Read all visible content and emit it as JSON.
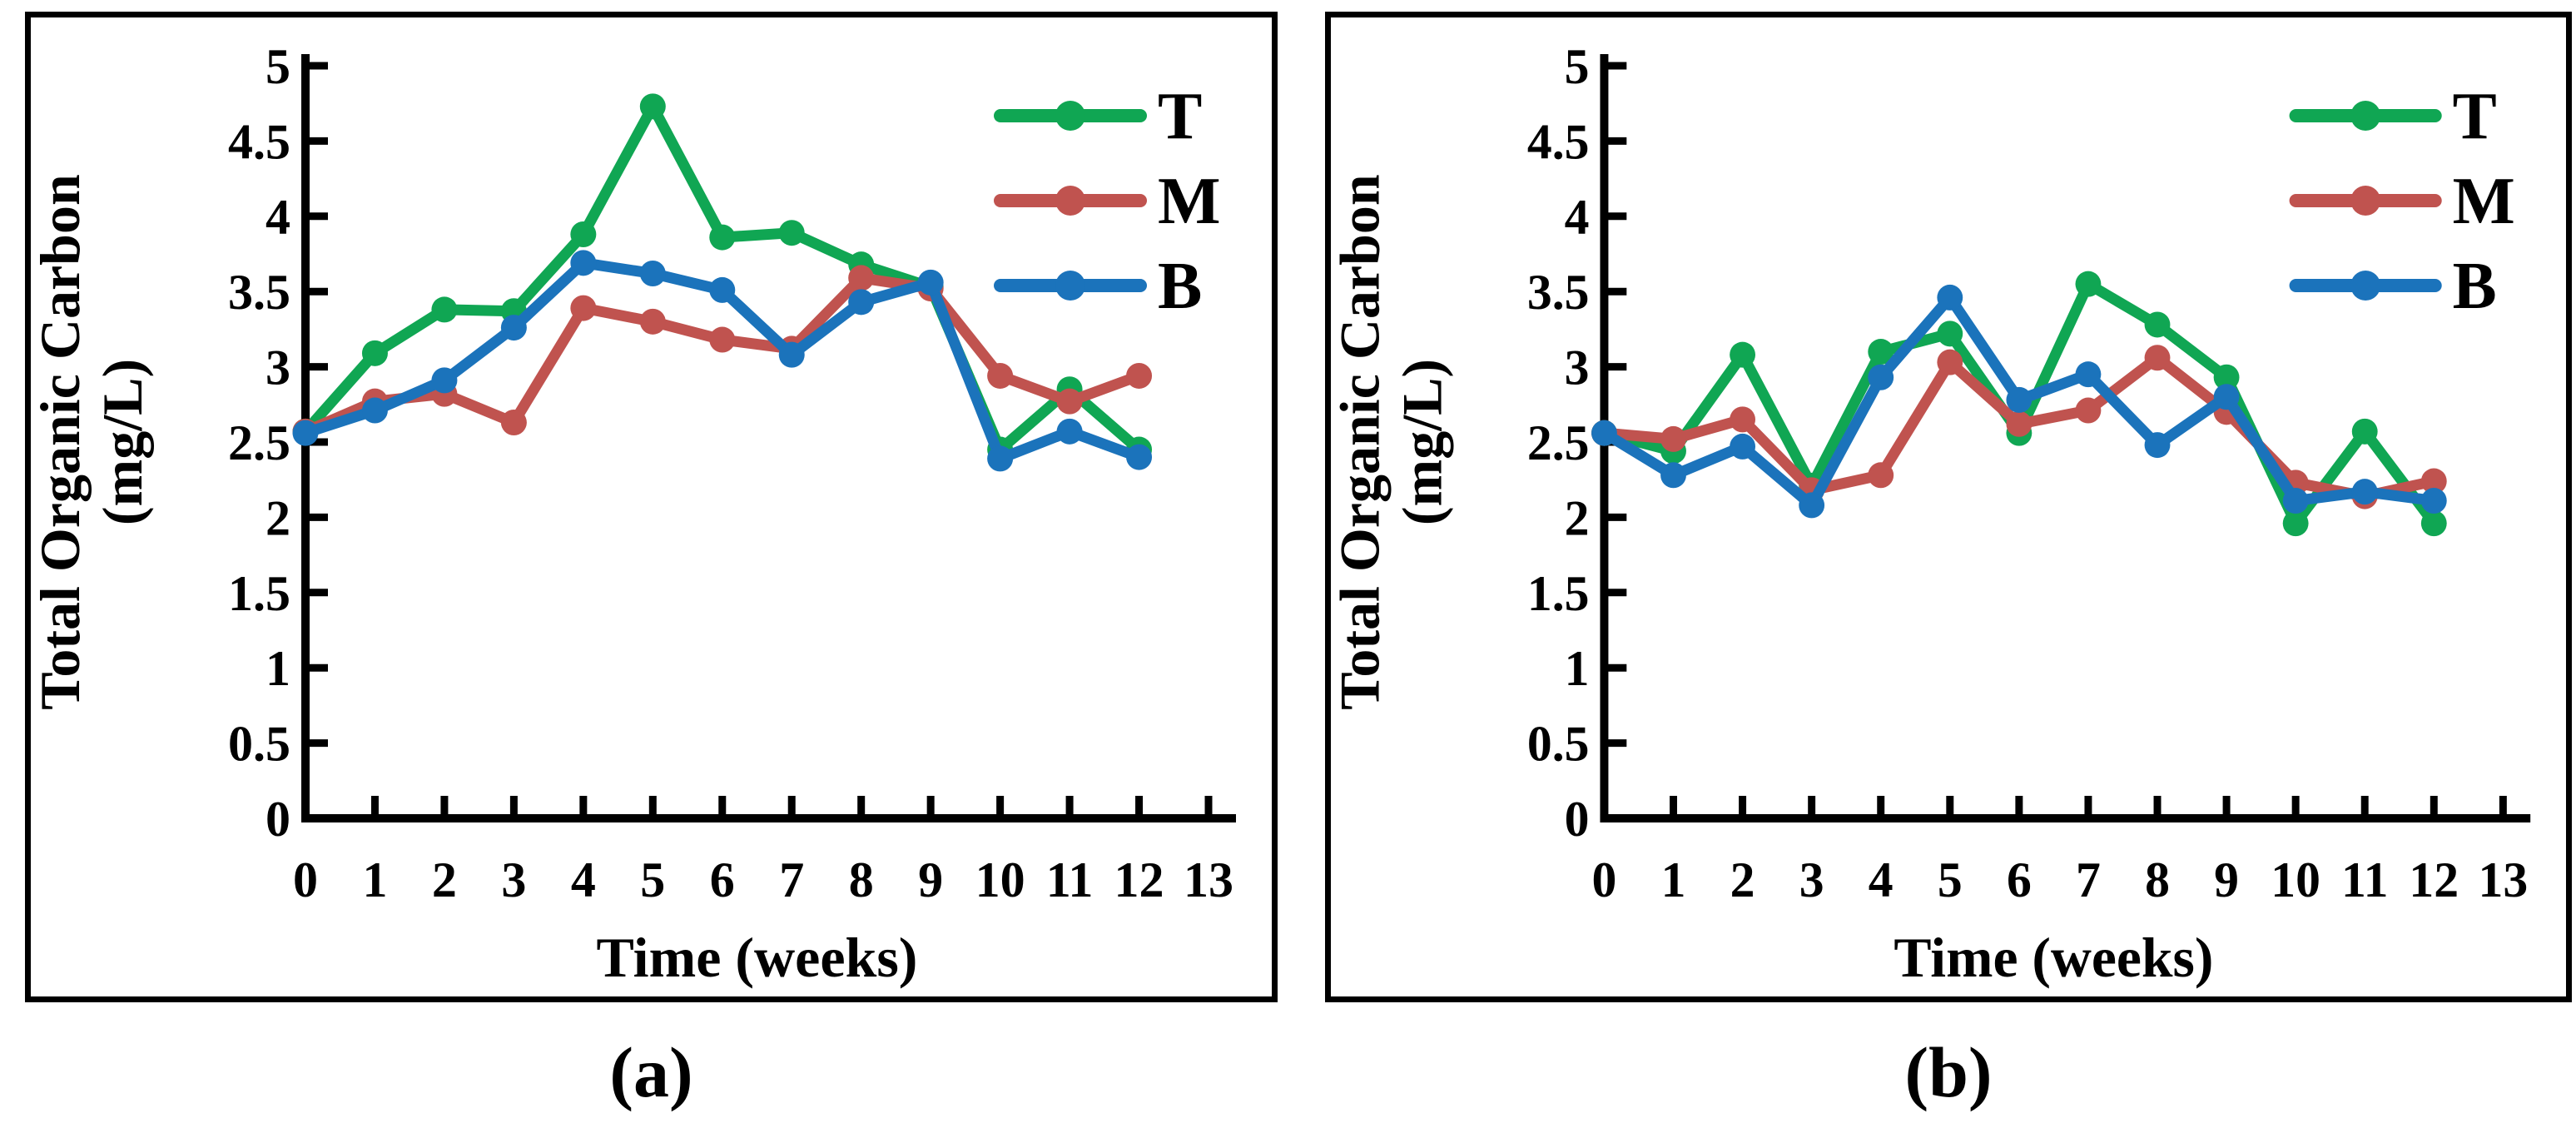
{
  "figure": {
    "background": "#ffffff",
    "axis_color": "#000000",
    "y_axis_title_line1": "Total Organic Carbon",
    "y_axis_title_line2": "(mg/L)",
    "x_axis_title": "Time (weeks)",
    "y_ticks": [
      0,
      0.5,
      1,
      1.5,
      2,
      2.5,
      3,
      3.5,
      4,
      4.5,
      5
    ],
    "x_ticks": [
      0,
      1,
      2,
      3,
      4,
      5,
      6,
      7,
      8,
      9,
      10,
      11,
      12,
      13
    ],
    "legend_entries": [
      "T",
      "M",
      "B"
    ],
    "series_colors": {
      "T": "#10a653",
      "M": "#c0534f",
      "B": "#1b73bb"
    }
  },
  "chart_data": [
    {
      "type": "line",
      "panel": "a",
      "caption": "(a)",
      "xlabel": "Time (weeks)",
      "ylabel": "Total Organic Carbon (mg/L)",
      "xlim": [
        0,
        13
      ],
      "ylim": [
        0,
        5
      ],
      "grid": false,
      "legend_position": "top-right-inside",
      "x": [
        0,
        1,
        2,
        3,
        4,
        5,
        6,
        7,
        8,
        9,
        10,
        11,
        12
      ],
      "series": [
        {
          "name": "T",
          "color": "#10a653",
          "values": [
            2.57,
            3.09,
            3.38,
            3.37,
            3.88,
            4.73,
            3.86,
            3.89,
            3.68,
            3.53,
            2.45,
            2.85,
            2.45
          ]
        },
        {
          "name": "M",
          "color": "#c0534f",
          "values": [
            2.57,
            2.77,
            2.82,
            2.63,
            3.39,
            3.3,
            3.18,
            3.12,
            3.59,
            3.52,
            2.94,
            2.77,
            2.94
          ]
        },
        {
          "name": "B",
          "color": "#1b73bb",
          "values": [
            2.56,
            2.71,
            2.91,
            3.26,
            3.69,
            3.62,
            3.51,
            3.08,
            3.43,
            3.56,
            2.39,
            2.57,
            2.4
          ]
        }
      ]
    },
    {
      "type": "line",
      "panel": "b",
      "caption": "(b)",
      "xlabel": "Time (weeks)",
      "ylabel": "Total Organic Carbon (mg/L)",
      "xlim": [
        0,
        13
      ],
      "ylim": [
        0,
        5
      ],
      "grid": false,
      "legend_position": "top-right-inside",
      "x": [
        0,
        1,
        2,
        3,
        4,
        5,
        6,
        7,
        8,
        9,
        10,
        11,
        12
      ],
      "series": [
        {
          "name": "T",
          "color": "#10a653",
          "values": [
            2.56,
            2.44,
            3.08,
            2.21,
            3.1,
            3.22,
            2.56,
            3.55,
            3.28,
            2.93,
            1.96,
            2.57,
            1.96
          ]
        },
        {
          "name": "M",
          "color": "#c0534f",
          "values": [
            2.56,
            2.52,
            2.65,
            2.18,
            2.28,
            3.03,
            2.62,
            2.71,
            3.06,
            2.7,
            2.23,
            2.14,
            2.24
          ]
        },
        {
          "name": "B",
          "color": "#1b73bb",
          "values": [
            2.56,
            2.28,
            2.47,
            2.08,
            2.93,
            3.46,
            2.78,
            2.95,
            2.48,
            2.8,
            2.11,
            2.17,
            2.11
          ]
        }
      ]
    }
  ]
}
